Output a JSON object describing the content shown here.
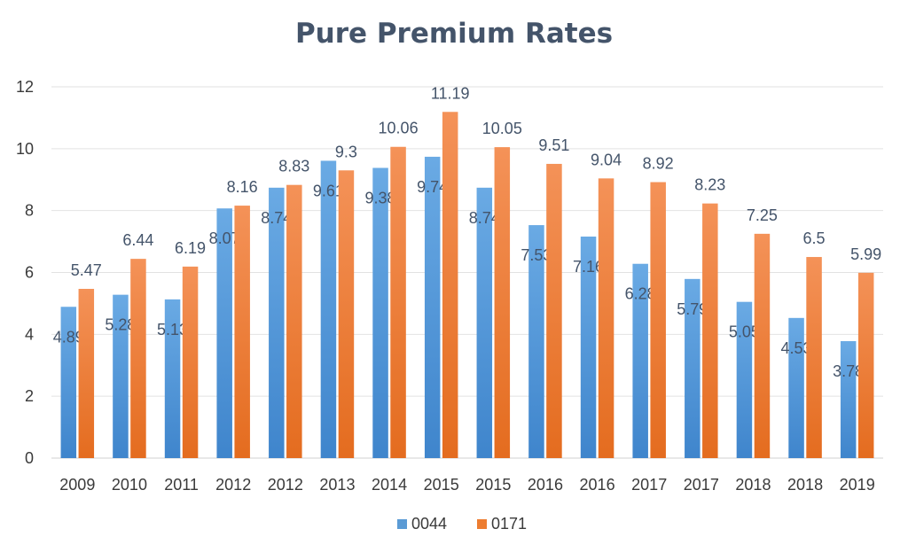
{
  "chart_data": {
    "type": "bar",
    "title": "Pure Premium Rates",
    "xlabel": "",
    "ylabel": "",
    "ylim": [
      0,
      12
    ],
    "yticks": [
      0,
      2,
      4,
      6,
      8,
      10,
      12
    ],
    "grid": true,
    "legend": "bottom",
    "categories": [
      "2009",
      "2010",
      "2011",
      "2012",
      "2012",
      "2013",
      "2014",
      "2015",
      "2015",
      "2016",
      "2016",
      "2017",
      "2017",
      "2018",
      "2018",
      "2019"
    ],
    "series": [
      {
        "name": "0044",
        "color": "#5b9bd5",
        "values": [
          4.89,
          5.28,
          5.13,
          8.07,
          8.74,
          9.61,
          9.38,
          9.74,
          8.74,
          7.53,
          7.16,
          6.28,
          5.79,
          5.05,
          4.53,
          3.78
        ]
      },
      {
        "name": "0171",
        "color": "#ed7d31",
        "values": [
          5.47,
          6.44,
          6.19,
          8.16,
          8.83,
          9.3,
          10.06,
          11.19,
          10.05,
          9.51,
          9.04,
          8.92,
          8.23,
          7.25,
          6.5,
          5.99
        ]
      }
    ]
  }
}
